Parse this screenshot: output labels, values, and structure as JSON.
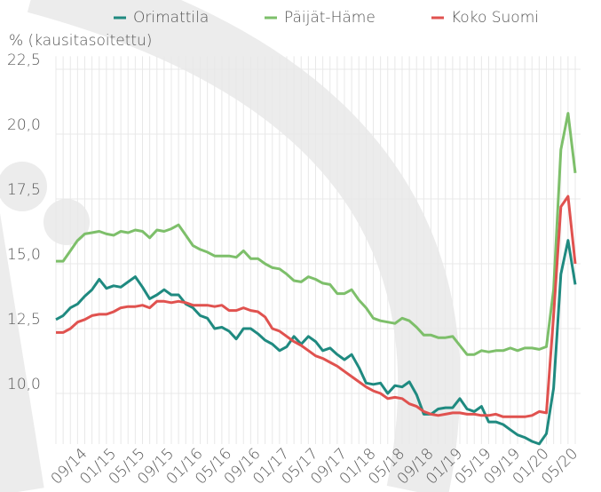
{
  "chart_data": {
    "type": "line",
    "y_axis_label": "% (kausitasoitettu)",
    "categories": [
      null,
      null,
      null,
      null,
      "09/14",
      null,
      null,
      null,
      "01/15",
      null,
      null,
      null,
      "05/15",
      null,
      null,
      null,
      "09/15",
      null,
      null,
      null,
      "01/16",
      null,
      null,
      null,
      "05/16",
      null,
      null,
      null,
      "09/16",
      null,
      null,
      null,
      "01/17",
      null,
      null,
      null,
      "05/17",
      null,
      null,
      null,
      "09/17",
      null,
      null,
      null,
      "01/18",
      null,
      null,
      null,
      "05/18",
      null,
      null,
      null,
      "09/18",
      null,
      null,
      null,
      "01/19",
      null,
      null,
      null,
      "05/19",
      null,
      null,
      null,
      "09/19",
      null,
      null,
      null,
      "01/20",
      null,
      null,
      null,
      "05/20"
    ],
    "series": [
      {
        "name": "Orimattila",
        "color": "#1f8a80",
        "values": [
          12.85,
          13.0,
          13.3,
          13.45,
          13.75,
          14.0,
          14.4,
          14.05,
          14.15,
          14.1,
          14.3,
          14.5,
          14.1,
          13.65,
          13.8,
          14.0,
          13.8,
          13.8,
          13.45,
          13.3,
          13.0,
          12.9,
          12.5,
          12.55,
          12.4,
          12.1,
          12.5,
          12.5,
          12.3,
          12.05,
          11.9,
          11.65,
          11.8,
          12.2,
          11.9,
          12.2,
          12.0,
          11.65,
          11.75,
          11.5,
          11.3,
          11.5,
          11.0,
          10.4,
          10.35,
          10.4,
          10.0,
          10.3,
          10.25,
          10.45,
          9.95,
          9.2,
          9.2,
          9.4,
          9.45,
          9.45,
          9.8,
          9.4,
          9.3,
          9.5,
          8.9,
          8.9,
          8.8,
          8.6,
          8.4,
          8.3,
          8.15,
          8.05,
          8.45,
          10.2,
          14.6,
          15.9,
          14.2
        ]
      },
      {
        "name": "Päijät-Häme",
        "color": "#7dbf6a",
        "values": [
          15.1,
          15.1,
          15.5,
          15.9,
          16.15,
          16.2,
          16.25,
          16.15,
          16.1,
          16.25,
          16.2,
          16.3,
          16.25,
          16.0,
          16.3,
          16.25,
          16.35,
          16.5,
          16.1,
          15.7,
          15.55,
          15.45,
          15.3,
          15.3,
          15.3,
          15.25,
          15.5,
          15.2,
          15.2,
          15.0,
          14.85,
          14.8,
          14.6,
          14.35,
          14.3,
          14.5,
          14.4,
          14.25,
          14.2,
          13.85,
          13.85,
          14.0,
          13.6,
          13.3,
          12.9,
          12.8,
          12.75,
          12.7,
          12.9,
          12.8,
          12.55,
          12.25,
          12.25,
          12.15,
          12.15,
          12.2,
          11.85,
          11.5,
          11.5,
          11.65,
          11.6,
          11.65,
          11.65,
          11.75,
          11.65,
          11.75,
          11.75,
          11.7,
          11.8,
          14.0,
          19.4,
          20.8,
          18.5
        ]
      },
      {
        "name": "Koko Suomi",
        "color": "#e0524f",
        "values": [
          12.35,
          12.35,
          12.5,
          12.75,
          12.85,
          13.0,
          13.05,
          13.05,
          13.15,
          13.3,
          13.35,
          13.35,
          13.4,
          13.3,
          13.55,
          13.55,
          13.5,
          13.55,
          13.5,
          13.4,
          13.4,
          13.4,
          13.35,
          13.4,
          13.2,
          13.2,
          13.3,
          13.2,
          13.15,
          12.95,
          12.5,
          12.4,
          12.2,
          12.0,
          11.85,
          11.65,
          11.45,
          11.35,
          11.2,
          11.05,
          10.85,
          10.65,
          10.45,
          10.25,
          10.1,
          10.0,
          9.8,
          9.85,
          9.8,
          9.6,
          9.5,
          9.3,
          9.2,
          9.15,
          9.2,
          9.25,
          9.25,
          9.2,
          9.2,
          9.15,
          9.15,
          9.2,
          9.1,
          9.1,
          9.1,
          9.1,
          9.15,
          9.3,
          9.25,
          13.0,
          17.2,
          17.6,
          15.0
        ]
      }
    ],
    "ylim": [
      8,
      23
    ],
    "yticks": [
      {
        "value": 10,
        "label": "10,0"
      },
      {
        "value": 12.5,
        "label": "12,5"
      },
      {
        "value": 15,
        "label": "15,0"
      },
      {
        "value": 17.5,
        "label": "17,5"
      },
      {
        "value": 20,
        "label": "20,0"
      },
      {
        "value": 22.5,
        "label": "22,5"
      }
    ],
    "grid": true,
    "legend": "top"
  }
}
